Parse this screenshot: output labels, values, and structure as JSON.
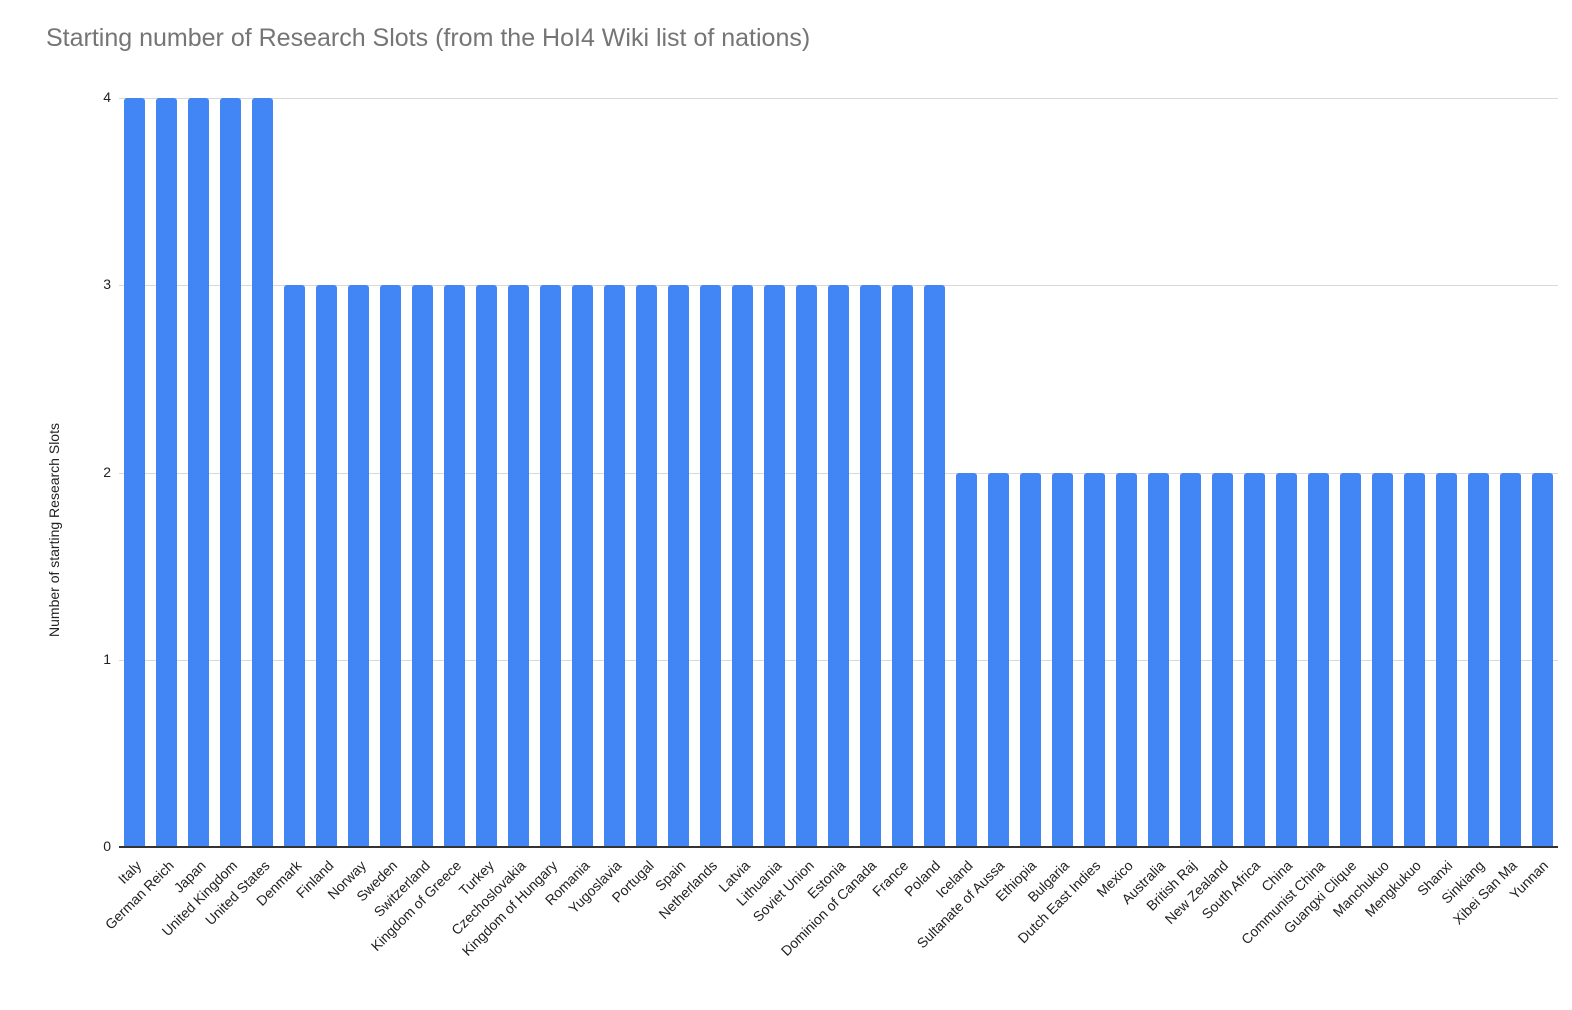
{
  "chart_data": {
    "type": "bar",
    "title": "Starting number of Research Slots (from the HoI4 Wiki list of nations)",
    "xlabel": "",
    "ylabel": "Number of starting Research Slots",
    "ylim": [
      0,
      4
    ],
    "yticks": [
      0,
      1,
      2,
      3,
      4
    ],
    "grid": true,
    "legend": "none",
    "bar_color": "#4285f4",
    "categories": [
      "Italy",
      "German Reich",
      "Japan",
      "United Kingdom",
      "United States",
      "Denmark",
      "Finland",
      "Norway",
      "Sweden",
      "Switzerland",
      "Kingdom of Greece",
      "Turkey",
      "Czechoslovakia",
      "Kingdom of Hungary",
      "Romania",
      "Yugoslavia",
      "Portugal",
      "Spain",
      "Netherlands",
      "Latvia",
      "Lithuania",
      "Soviet Union",
      "Estonia",
      "Dominion of Canada",
      "France",
      "Poland",
      "Iceland",
      "Sultanate of Aussa",
      "Ethiopia",
      "Bulgaria",
      "Dutch East Indies",
      "Mexico",
      "Australia",
      "British Raj",
      "New Zealand",
      "South Africa",
      "China",
      "Communist China",
      "Guangxi Clique",
      "Manchukuo",
      "Mengkukuo",
      "Shanxi",
      "Sinkiang",
      "Xibei San Ma",
      "Yunnan"
    ],
    "values": [
      4,
      4,
      4,
      4,
      4,
      3,
      3,
      3,
      3,
      3,
      3,
      3,
      3,
      3,
      3,
      3,
      3,
      3,
      3,
      3,
      3,
      3,
      3,
      3,
      3,
      3,
      2,
      2,
      2,
      2,
      2,
      2,
      2,
      2,
      2,
      2,
      2,
      2,
      2,
      2,
      2,
      2,
      2,
      2,
      2
    ]
  }
}
